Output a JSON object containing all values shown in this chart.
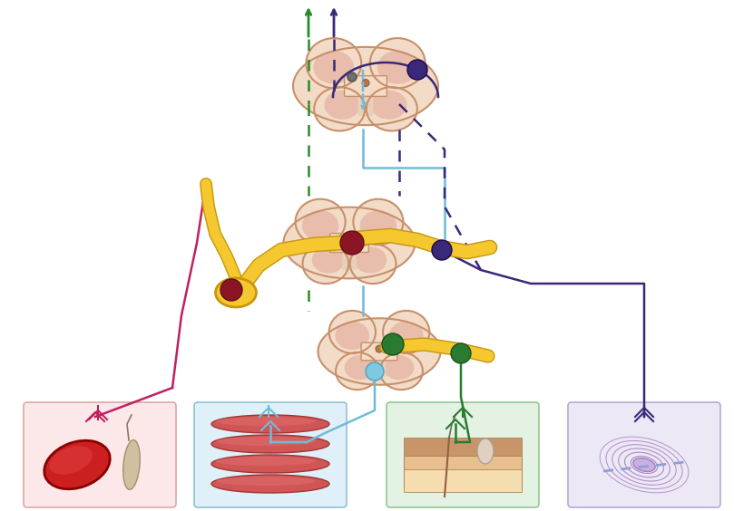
{
  "bg_color": "#ffffff",
  "sc_fill": "#f2dcc8",
  "sc_edge": "#c8906a",
  "sc_pink": "#e8b8a8",
  "sc_cream": "#f8e8d8",
  "green_col": "#2a8a2a",
  "purple_col": "#3a2878",
  "cyan_col": "#70bcd8",
  "darkred_col": "#901030",
  "magenta_col": "#c02060",
  "yellow_fill": "#f5c830",
  "yellow_edge": "#c8960a",
  "green2_col": "#2a7a30",
  "box1_fill": "#fce8e8",
  "box1_edge": "#dca8a8",
  "box2_fill": "#e0f0f8",
  "box2_edge": "#90c0d8",
  "box3_fill": "#e4f2e4",
  "box3_edge": "#90c890",
  "box4_fill": "#ece8f5",
  "box4_edge": "#b8a8d8"
}
